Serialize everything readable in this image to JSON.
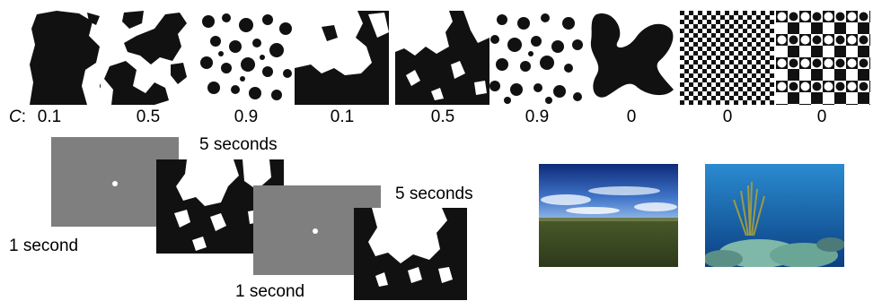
{
  "top_row": {
    "c_label_prefix": "C",
    "c_label_suffix": ":",
    "c_values": [
      "0.1",
      "0.5",
      "0.9",
      "0.1",
      "0.5",
      "0.9",
      "0",
      "0",
      "0"
    ]
  },
  "timeline": {
    "stim1_duration": "5 seconds",
    "fixation1_duration": "1 second",
    "stim2_duration": "5 seconds",
    "fixation2_duration": "1 second"
  },
  "colors": {
    "background": "#ffffff",
    "figure_black": "#111111",
    "fixation_gray": "#7f7f7f"
  }
}
